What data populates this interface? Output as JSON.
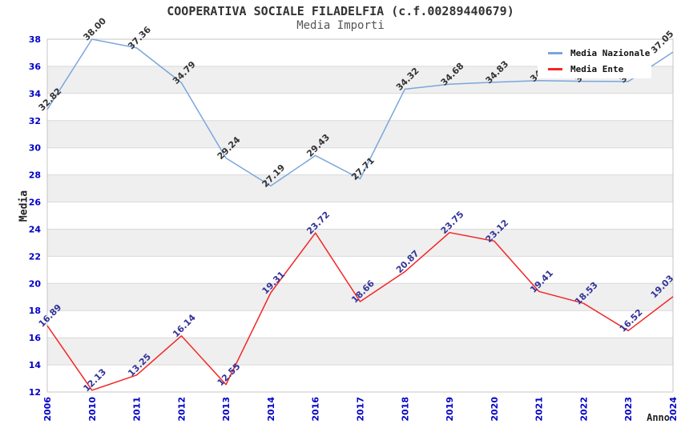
{
  "title": "COOPERATIVA SOCIALE FILADELFIA (c.f.00289440679)",
  "subtitle": "Media Importi",
  "chart_data": {
    "type": "line",
    "title": "COOPERATIVA SOCIALE FILADELFIA (c.f.00289440679)",
    "subtitle": "Media Importi",
    "xlabel": "Anno",
    "ylabel": "Media",
    "ylim": [
      12,
      38
    ],
    "yticks": [
      38,
      36,
      34,
      32,
      30,
      28,
      26,
      24,
      22,
      20,
      18,
      16,
      14,
      12
    ],
    "grid": "horizontal, alternating gray bands every 2 units",
    "legend_position": "top-right",
    "categories": [
      "2006",
      "2010",
      "2011",
      "2012",
      "2013",
      "2014",
      "2016",
      "2017",
      "2018",
      "2019",
      "2020",
      "2021",
      "2022",
      "2023",
      "2024"
    ],
    "series": [
      {
        "name": "Media Nazionale",
        "color": "#7AA6DC",
        "label_color": "#333333",
        "values": [
          32.82,
          38.0,
          37.36,
          34.79,
          29.24,
          27.19,
          29.43,
          27.71,
          34.32,
          34.68,
          34.83,
          34.95,
          34.9,
          34.88,
          37.05
        ],
        "labels": [
          "32.82",
          "38.00",
          "37.36",
          "34.79",
          "29.24",
          "27.19",
          "29.43",
          "27.71",
          "34.32",
          "34.68",
          "34.83",
          "34.95",
          "34.90",
          "34.88",
          "37.05"
        ]
      },
      {
        "name": "Media Ente",
        "color": "#F42525",
        "label_color": "#333399",
        "values": [
          16.89,
          12.13,
          13.25,
          16.14,
          12.55,
          19.31,
          23.72,
          18.66,
          20.87,
          23.75,
          23.12,
          19.41,
          18.53,
          16.52,
          19.03
        ],
        "labels": [
          "16.89",
          "12.13",
          "13.25",
          "16.14",
          "12.55",
          "19.31",
          "23.72",
          "18.66",
          "20.87",
          "23.75",
          "23.12",
          "19.41",
          "18.53",
          "16.52",
          "19.03"
        ]
      }
    ],
    "style": {
      "tick_label_color": "#0000C8",
      "band_color": "#EFEFEF",
      "grid_color": "#D9D9D9",
      "frame_color": "#C4C4C4",
      "background": "#FFFFFF"
    }
  }
}
